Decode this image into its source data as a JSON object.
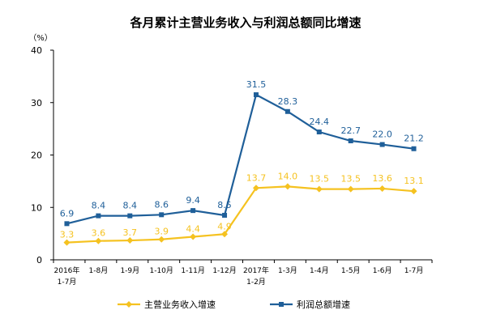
{
  "chart_data": {
    "type": "line",
    "title": "各月累计主营业务收入与利润总额同比增速",
    "ylabel": "（%）",
    "ylim": [
      0,
      40
    ],
    "yticks": [
      0,
      10,
      20,
      30,
      40
    ],
    "grid": false,
    "legend_position": "bottom",
    "categories": [
      [
        "2016年",
        "1-7月"
      ],
      [
        "1-8月"
      ],
      [
        "1-9月"
      ],
      [
        "1-10月"
      ],
      [
        "1-11月"
      ],
      [
        "1-12月"
      ],
      [
        "2017年",
        "1-2月"
      ],
      [
        "1-3月"
      ],
      [
        "1-4月"
      ],
      [
        "1-5月"
      ],
      [
        "1-6月"
      ],
      [
        "1-7月"
      ]
    ],
    "series": [
      {
        "name": "主营业务收入增速",
        "color": "#F5C220",
        "marker": "diamond",
        "values": [
          3.3,
          3.6,
          3.7,
          3.9,
          4.4,
          4.9,
          13.7,
          14.0,
          13.5,
          13.5,
          13.6,
          13.1
        ]
      },
      {
        "name": "利润总额增速",
        "color": "#1F5F99",
        "marker": "square",
        "values": [
          6.9,
          8.4,
          8.4,
          8.6,
          9.4,
          8.5,
          31.5,
          28.3,
          24.4,
          22.7,
          22.0,
          21.2
        ]
      }
    ]
  }
}
